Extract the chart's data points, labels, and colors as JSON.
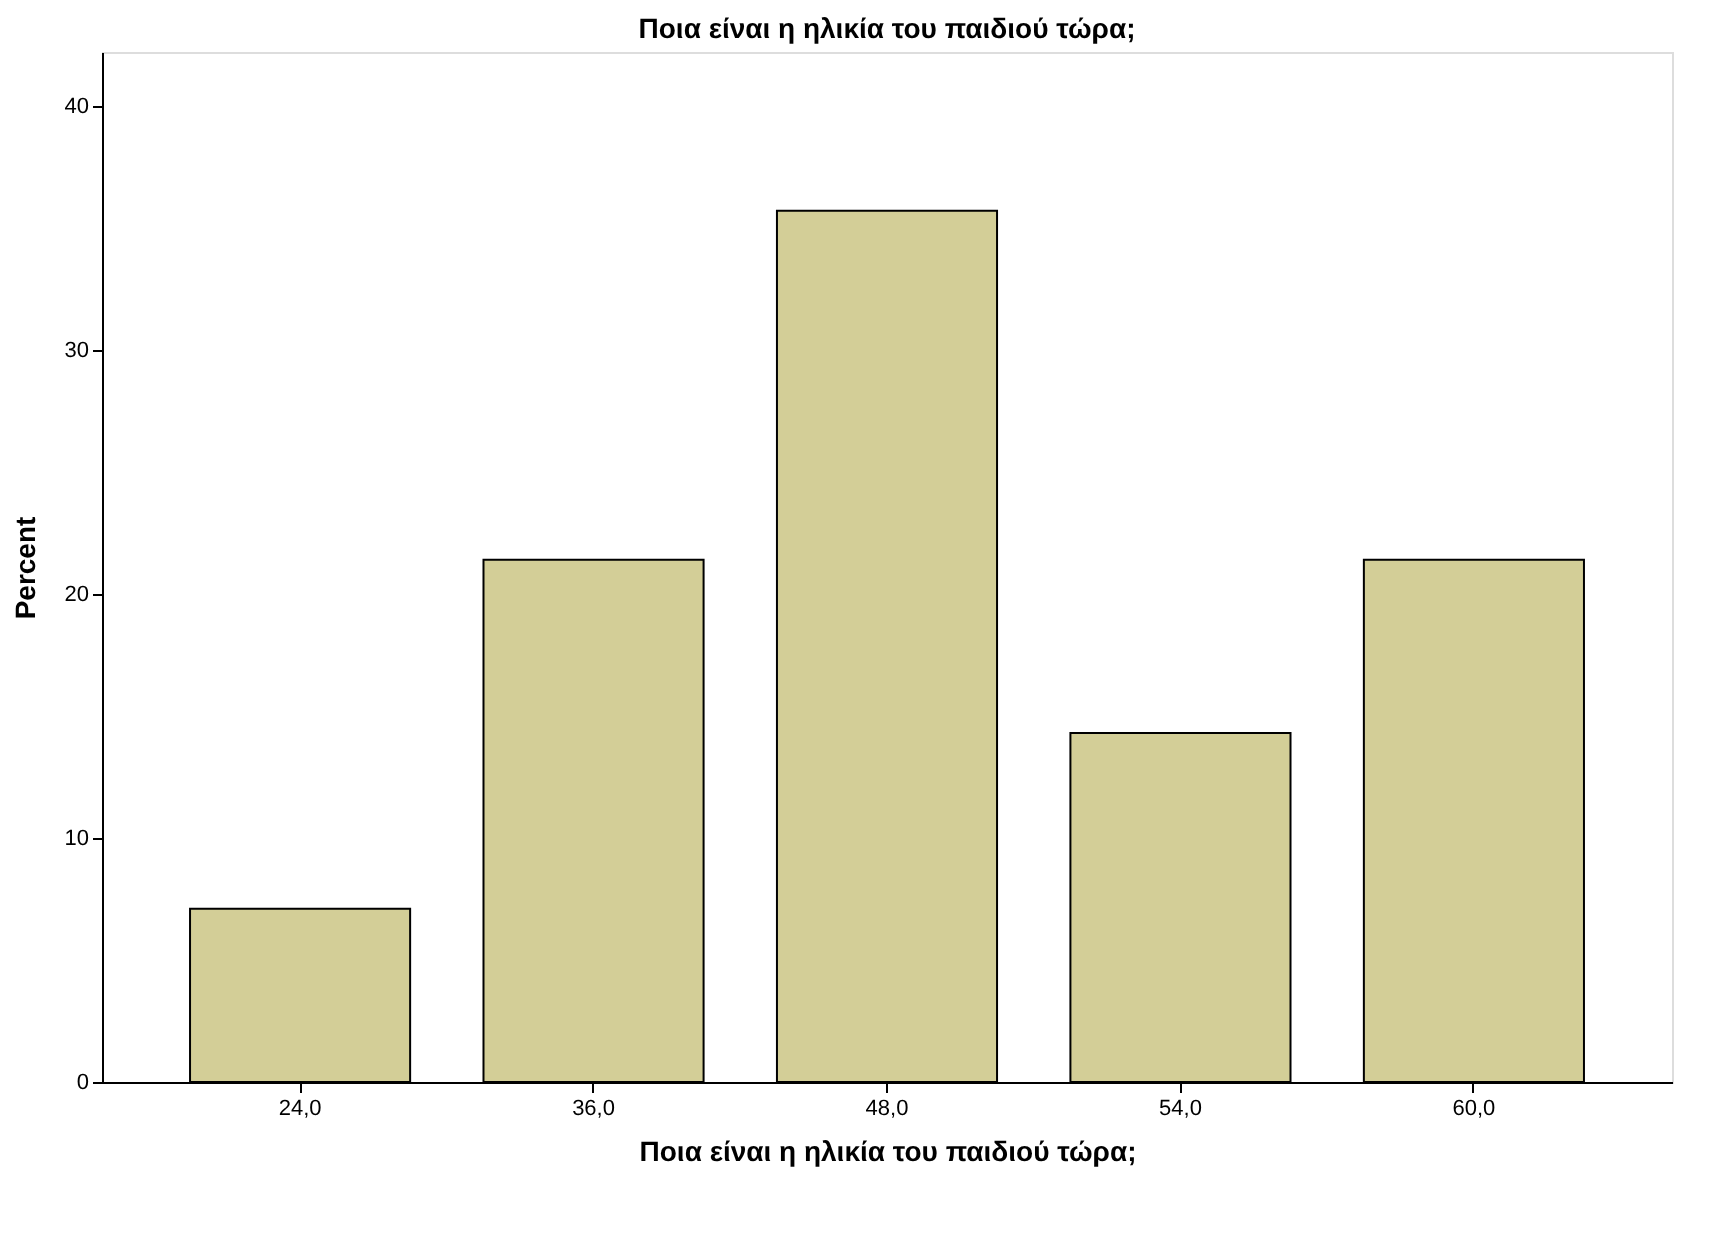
{
  "chart_data": {
    "type": "bar",
    "title": "Ποια είναι η ηλικία του παιδιού τώρα;",
    "xlabel": "Ποια είναι η ηλικία του παιδιού τώρα;",
    "ylabel": "Percent",
    "categories": [
      "24,0",
      "36,0",
      "48,0",
      "54,0",
      "60,0"
    ],
    "values": [
      7.1,
      21.4,
      35.7,
      14.3,
      21.4
    ],
    "color": "#d3ce97",
    "ylim": [
      0,
      42.2
    ],
    "yticks": [
      0,
      10,
      20,
      30,
      40
    ],
    "grid": false
  }
}
